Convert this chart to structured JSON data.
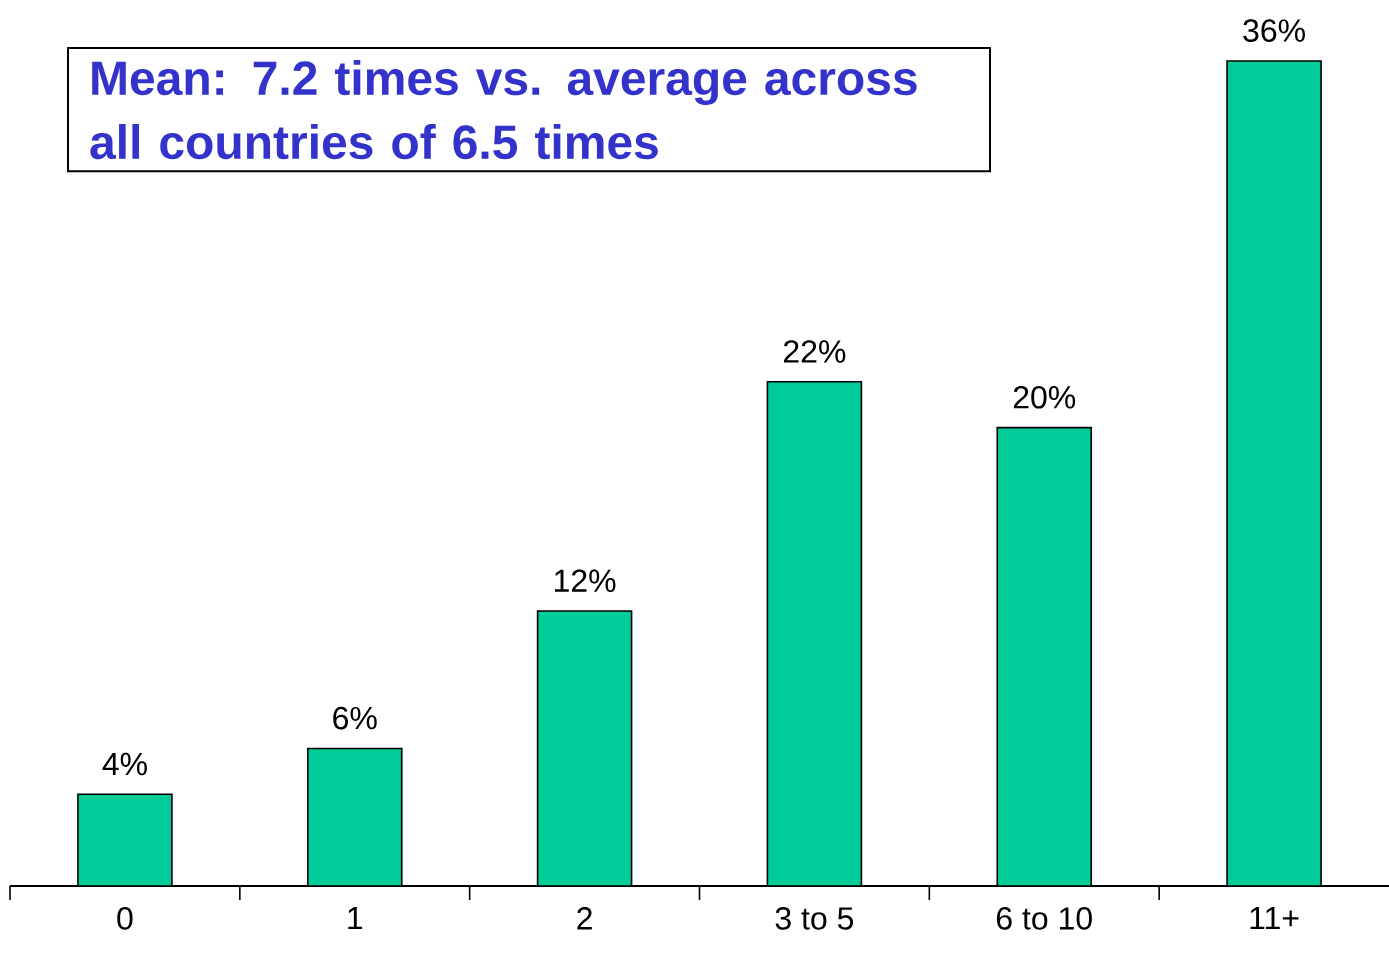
{
  "chart_data": {
    "type": "bar",
    "annotations": [
      "Mean: 7.2 times vs. average across all countries of 6.5 times"
    ],
    "categories": [
      "0",
      "1",
      "2",
      "3 to 5",
      "6 to 10",
      "11+"
    ],
    "values": [
      4,
      6,
      12,
      22,
      20,
      36
    ],
    "value_labels": [
      "4%",
      "6%",
      "12%",
      "22%",
      "20%",
      "36%"
    ],
    "color": "#00cc99"
  }
}
